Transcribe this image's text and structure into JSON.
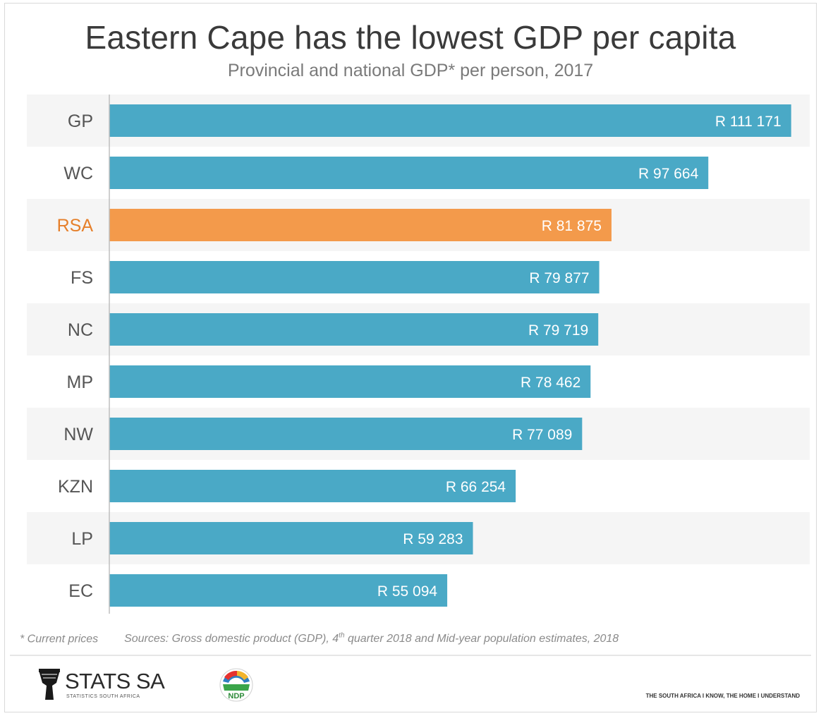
{
  "header": {
    "title": "Eastern Cape has the lowest GDP per capita",
    "subtitle": "Provincial and national GDP* per person, 2017"
  },
  "chart_data": {
    "type": "bar",
    "orientation": "horizontal",
    "title": "Eastern Cape has the lowest GDP per capita",
    "subtitle": "Provincial and national GDP* per person, 2017",
    "categories": [
      "GP",
      "WC",
      "RSA",
      "FS",
      "NC",
      "MP",
      "NW",
      "KZN",
      "LP",
      "EC"
    ],
    "values": [
      111171,
      97664,
      81875,
      79877,
      79719,
      78462,
      77089,
      66254,
      59283,
      55094
    ],
    "value_labels": [
      "R 111 171",
      "R 97 664",
      "R 81 875",
      "R 79 877",
      "R 79 719",
      "R 78 462",
      "R 77 089",
      "R 66 254",
      "R 59 283",
      "R 55 094"
    ],
    "highlight_category": "RSA",
    "xlim": [
      0,
      115000
    ],
    "grid": false,
    "colors": {
      "bar": "#4aa9c6",
      "highlight_bar": "#f39a4b",
      "highlight_label": "#e57f2a",
      "category_label": "#555555",
      "row_band": "#f5f5f5"
    }
  },
  "footer": {
    "note": "* Current prices",
    "sources_prefix": "Sources: Gross domestic product (GDP), 4",
    "sources_sup": "th",
    "sources_suffix": " quarter 2018 and Mid-year population estimates, 2018",
    "tagline": "THE SOUTH AFRICA I KNOW, THE HOME I UNDERSTAND"
  },
  "logos": {
    "stats_name": "STATS SA",
    "stats_sub": "STATISTICS SOUTH AFRICA",
    "ndp_text": "NDP"
  }
}
